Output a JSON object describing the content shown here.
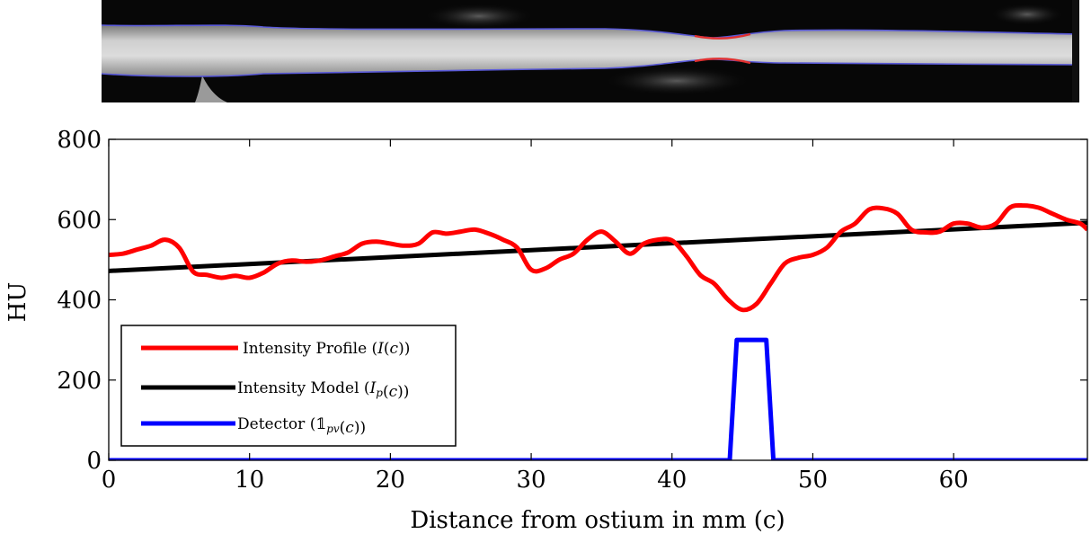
{
  "vessel_image": {
    "description_role": "straightened vessel (curved planar reformation) with lumen contours",
    "contour_color": "#5a5ad8",
    "stenosis_contour_color": "#e03030",
    "background_color": "#050505",
    "lumen_color": "#c8c8c8"
  },
  "chart_data": {
    "type": "line",
    "xlabel": "Distance from ostium in mm (c)",
    "ylabel": "HU",
    "xlim": [
      0,
      69.5
    ],
    "ylim": [
      0,
      800
    ],
    "xticks": [
      0,
      10,
      20,
      30,
      40,
      50,
      60
    ],
    "yticks": [
      0,
      200,
      400,
      600,
      800
    ],
    "grid": false,
    "legend_position": "lower-left",
    "series": [
      {
        "name": "Intensity Profile (I(c))",
        "color": "#ff0000",
        "x": [
          0,
          1,
          2,
          3,
          4,
          5,
          6,
          7,
          8,
          9,
          10,
          11,
          12,
          13,
          14,
          15,
          16,
          17,
          18,
          19,
          20,
          21,
          22,
          23,
          24,
          25,
          26,
          27,
          28,
          29,
          30,
          31,
          32,
          33,
          34,
          35,
          36,
          37,
          38,
          39,
          40,
          41,
          42,
          43,
          44,
          45,
          46,
          47,
          48,
          49,
          50,
          51,
          52,
          53,
          54,
          55,
          56,
          57,
          58,
          59,
          60,
          61,
          62,
          63,
          64,
          65,
          66,
          67,
          68,
          69,
          69.5
        ],
        "y": [
          512,
          515,
          525,
          535,
          550,
          530,
          470,
          462,
          455,
          460,
          455,
          468,
          490,
          498,
          495,
          498,
          508,
          518,
          540,
          545,
          540,
          535,
          540,
          568,
          565,
          570,
          575,
          565,
          550,
          530,
          475,
          478,
          500,
          515,
          550,
          570,
          545,
          515,
          540,
          550,
          548,
          510,
          462,
          440,
          400,
          375,
          390,
          440,
          490,
          505,
          512,
          530,
          570,
          590,
          625,
          628,
          615,
          575,
          568,
          570,
          590,
          590,
          580,
          590,
          630,
          635,
          630,
          615,
          600,
          590,
          575
        ]
      },
      {
        "name": "Intensity Model (I_p(c))",
        "color": "#000000",
        "x": [
          0,
          69.5
        ],
        "y": [
          472,
          592
        ]
      },
      {
        "name": "Detector (1_pv(c))",
        "color": "#0000ff",
        "x": [
          0,
          44.1,
          44.6,
          46.7,
          47.2,
          69.5
        ],
        "y": [
          0,
          0,
          300,
          300,
          0,
          0
        ]
      }
    ],
    "legend": [
      {
        "prefix": "Intensity Profile (",
        "sym": "I",
        "sub": "",
        "suffix": "(c))"
      },
      {
        "prefix": "Intensity Model (",
        "sym": "I",
        "sub": "p",
        "suffix": "(c))"
      },
      {
        "prefix": "Detector (",
        "sym": "𝟙",
        "sub": "pv",
        "suffix": "(c))"
      }
    ]
  }
}
